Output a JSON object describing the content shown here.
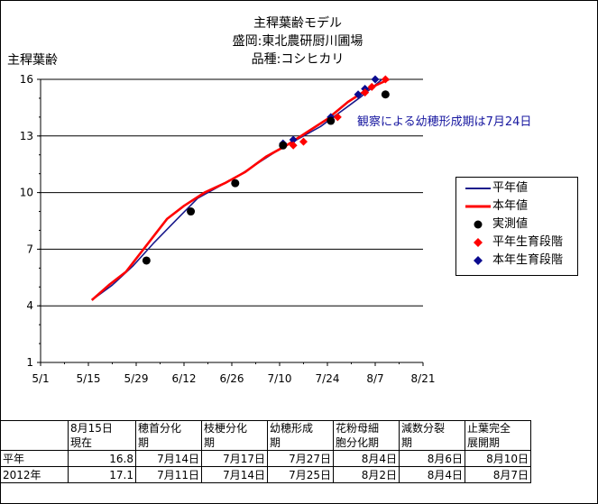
{
  "title_lines": [
    "主稈葉齢モデル",
    "盛岡:東北農研厨川圃場",
    "品種:コシヒカリ"
  ],
  "annotation": "観察による幼穂形成期は7月24日",
  "colors": {
    "normal_line": "#1a1a8c",
    "current_line": "#ff0000",
    "observed": "#000000",
    "normal_stage": "#ff0000",
    "current_stage": "#0b0b8f"
  },
  "chart_data": {
    "type": "line",
    "ylabel": "主稈葉齢",
    "xlabel": "",
    "x_ticks": [
      "5/1",
      "5/15",
      "5/29",
      "6/12",
      "6/26",
      "7/10",
      "7/24",
      "8/7",
      "8/21"
    ],
    "y_ticks": [
      1,
      4,
      7,
      10,
      13,
      16
    ],
    "xlim": [
      "5/1",
      "8/21"
    ],
    "ylim": [
      1,
      16
    ],
    "grid": "horizontal",
    "legend_position": "right",
    "series": [
      {
        "name": "平年値",
        "type": "line",
        "x": [
          "5/16",
          "5/22",
          "5/28",
          "6/3",
          "6/10",
          "6/16",
          "6/22",
          "6/28",
          "7/4",
          "7/10",
          "7/16",
          "7/22",
          "7/28",
          "8/3",
          "8/9"
        ],
        "y": [
          4.3,
          5.1,
          6.1,
          7.3,
          8.6,
          9.7,
          10.3,
          10.9,
          11.6,
          12.3,
          12.9,
          13.5,
          14.3,
          15.1,
          16.0
        ]
      },
      {
        "name": "本年値",
        "type": "line",
        "x": [
          "5/16",
          "5/21",
          "5/26",
          "6/1",
          "6/7",
          "6/12",
          "6/18",
          "6/24",
          "6/30",
          "7/6",
          "7/12",
          "7/18",
          "7/24",
          "7/30",
          "8/5",
          "8/11"
        ],
        "y": [
          4.3,
          5.1,
          5.8,
          7.2,
          8.6,
          9.3,
          10.0,
          10.5,
          11.1,
          11.9,
          12.5,
          13.2,
          13.9,
          14.8,
          15.5,
          16.0
        ]
      },
      {
        "name": "実測値",
        "type": "scatter",
        "x": [
          "6/1",
          "6/14",
          "6/27",
          "7/11",
          "7/25",
          "8/10"
        ],
        "y": [
          6.4,
          9.0,
          10.5,
          12.5,
          13.8,
          15.2
        ]
      },
      {
        "name": "平年生育段階",
        "type": "scatter",
        "x": [
          "7/14",
          "7/17",
          "7/27",
          "8/4",
          "8/6",
          "8/10"
        ],
        "y": [
          12.5,
          12.7,
          14.0,
          15.3,
          15.6,
          16.0
        ]
      },
      {
        "name": "本年生育段階",
        "type": "scatter",
        "x": [
          "7/11",
          "7/14",
          "7/25",
          "8/2",
          "8/4",
          "8/7"
        ],
        "y": [
          12.6,
          12.8,
          14.0,
          15.2,
          15.5,
          16.0
        ]
      }
    ]
  },
  "table": {
    "headers": [
      [
        "8月15日",
        "現在"
      ],
      [
        "穂首分化",
        "期"
      ],
      [
        "枝梗分化",
        "期"
      ],
      [
        "幼穂形成",
        "期"
      ],
      [
        "花粉母細",
        "胞分化期"
      ],
      [
        "減数分裂",
        "期"
      ],
      [
        "止葉完全",
        "展開期"
      ]
    ],
    "rows": [
      {
        "label": "平年",
        "values": [
          "16.8",
          "7月14日",
          "7月17日",
          "7月27日",
          "8月4日",
          "8月6日",
          "8月10日"
        ]
      },
      {
        "label": "2012年",
        "values": [
          "17.1",
          "7月11日",
          "7月14日",
          "7月25日",
          "8月2日",
          "8月4日",
          "8月7日"
        ]
      }
    ]
  }
}
